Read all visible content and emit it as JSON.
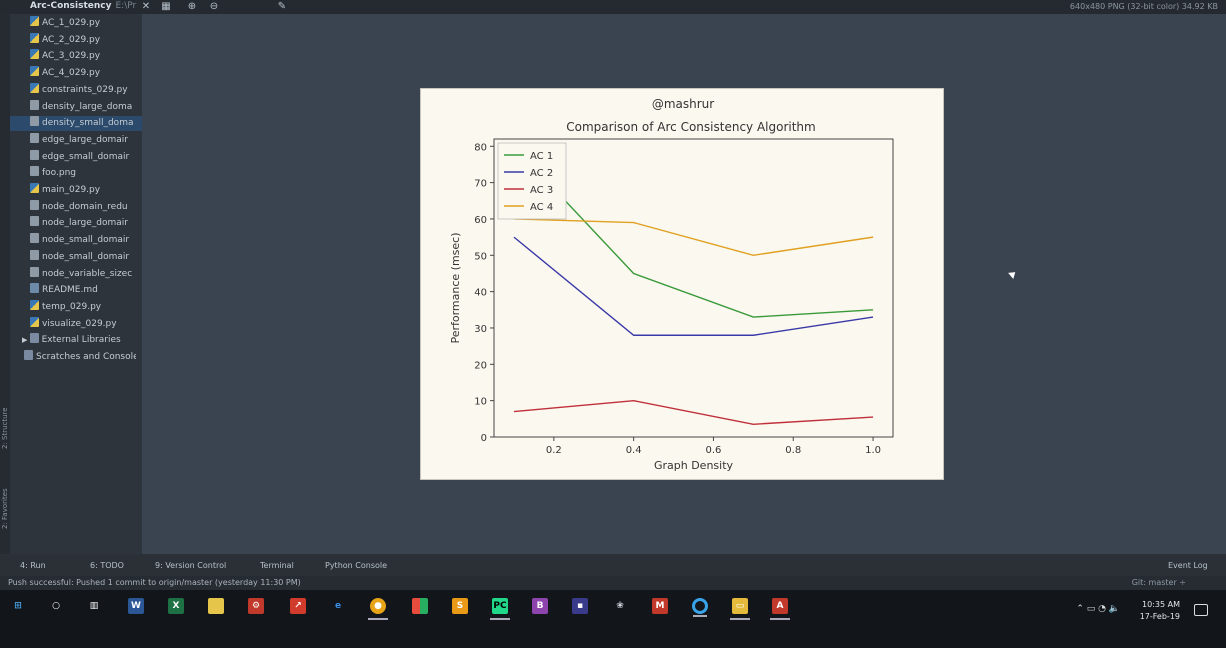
{
  "project": {
    "name": "Arc-Consistency",
    "path": "E:\\Pr"
  },
  "image_info": "640x480 PNG (32-bit color) 34.92 KB",
  "side_tabs": [
    "2: Structure",
    "2: Favorites"
  ],
  "tree": {
    "files": [
      {
        "name": "AC_1_029.py",
        "type": "py"
      },
      {
        "name": "AC_2_029.py",
        "type": "py"
      },
      {
        "name": "AC_3_029.py",
        "type": "py"
      },
      {
        "name": "AC_4_029.py",
        "type": "py"
      },
      {
        "name": "constraints_029.py",
        "type": "py"
      },
      {
        "name": "density_large_doma",
        "type": "txt"
      },
      {
        "name": "density_small_doma",
        "type": "txt"
      },
      {
        "name": "edge_large_domair",
        "type": "txt"
      },
      {
        "name": "edge_small_domair",
        "type": "txt"
      },
      {
        "name": "foo.png",
        "type": "txt"
      },
      {
        "name": "main_029.py",
        "type": "py"
      },
      {
        "name": "node_domain_redu",
        "type": "txt"
      },
      {
        "name": "node_large_domair",
        "type": "txt"
      },
      {
        "name": "node_small_domair",
        "type": "txt"
      },
      {
        "name": "node_small_domair",
        "type": "txt"
      },
      {
        "name": "node_variable_sizec",
        "type": "txt"
      },
      {
        "name": "README.md",
        "type": "md"
      },
      {
        "name": "temp_029.py",
        "type": "py"
      },
      {
        "name": "visualize_029.py",
        "type": "py"
      }
    ],
    "external_libraries": "External Libraries",
    "scratches": "Scratches and Consoles"
  },
  "bottom_tabs": [
    "4: Run",
    "6: TODO",
    "9: Version Control",
    "Terminal",
    "Python Console",
    "Event Log"
  ],
  "status": {
    "message": "Push successful: Pushed 1 commit to origin/master (yesterday 11:30 PM)",
    "git": "Git: master ÷"
  },
  "clock": {
    "time": "10:35 AM",
    "date": "17-Feb-19"
  },
  "colors": {
    "ac1": "#3a9a3a",
    "ac2": "#3a3aa8",
    "ac3": "#c0303a",
    "ac4": "#e0a020"
  },
  "chart_data": {
    "type": "line",
    "watermark": "@mashrur",
    "title": "Comparison of Arc Consistency Algorithm",
    "xlabel": "Graph Density",
    "ylabel": "Performance (msec)",
    "xlim": [
      0.05,
      1.05
    ],
    "ylim": [
      0,
      82
    ],
    "xticks": [
      0.2,
      0.4,
      0.6,
      0.8,
      1.0
    ],
    "xtick_labels": [
      "0.2",
      "0.4",
      "0.6",
      "0.8",
      "1.0"
    ],
    "yticks": [
      0,
      10,
      20,
      30,
      40,
      50,
      60,
      70,
      80
    ],
    "legend_position": "top-left",
    "x": [
      0.1,
      0.4,
      0.7,
      1.0
    ],
    "series": [
      {
        "name": "AC 1",
        "color": "#3a9a3a",
        "values": [
          80,
          45,
          33,
          35
        ]
      },
      {
        "name": "AC 2",
        "color": "#3a3aa8",
        "values": [
          55,
          28,
          28,
          33
        ]
      },
      {
        "name": "AC 3",
        "color": "#c0303a",
        "values": [
          7,
          10,
          3.5,
          5.5
        ]
      },
      {
        "name": "AC 4",
        "color": "#e0a020",
        "values": [
          60,
          59,
          50,
          55
        ]
      }
    ]
  }
}
